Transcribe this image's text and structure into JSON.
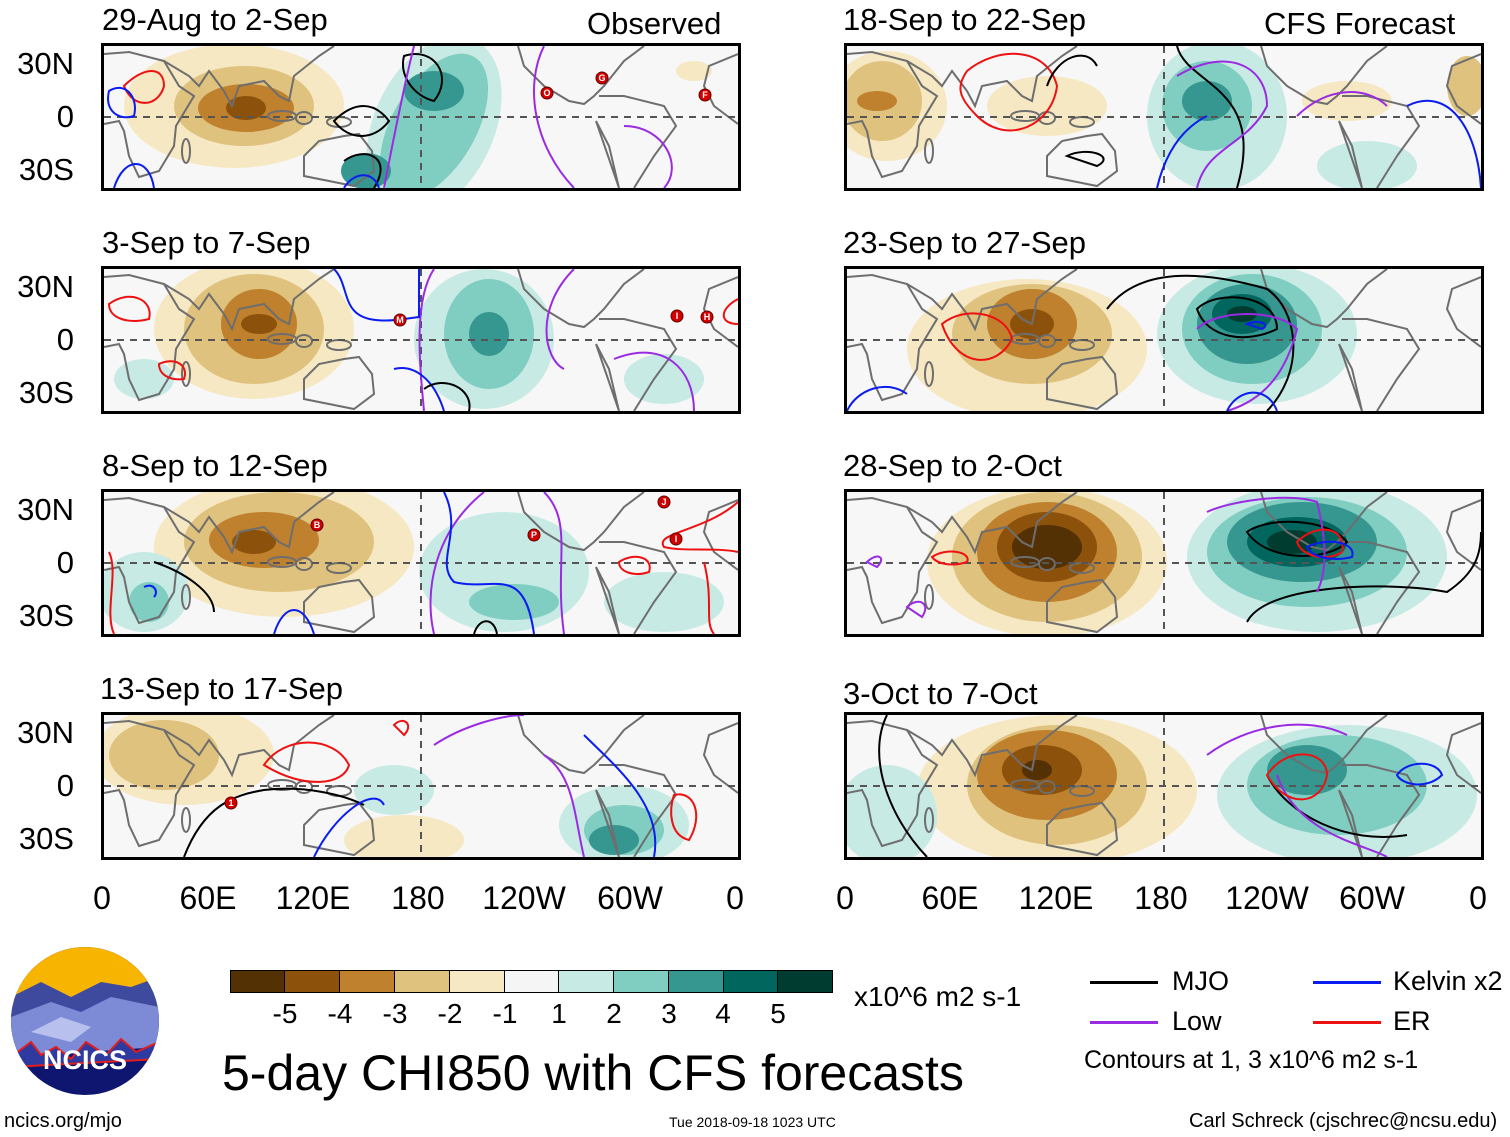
{
  "header": {
    "observed_label": "Observed",
    "forecast_label": "CFS Forecast"
  },
  "axes": {
    "lat_labels": [
      "30N",
      "0",
      "30S"
    ],
    "lon_labels": [
      "0",
      "60E",
      "120E",
      "180",
      "120W",
      "60W",
      "0"
    ]
  },
  "panels": [
    {
      "title": "29-Aug to 2-Sep",
      "storms": [
        "O",
        "G",
        "F"
      ]
    },
    {
      "title": "3-Sep to 7-Sep",
      "storms": [
        "M",
        "I",
        "H"
      ]
    },
    {
      "title": "8-Sep to 12-Sep",
      "storms": [
        "B",
        "P",
        "J",
        "I"
      ]
    },
    {
      "title": "13-Sep to 17-Sep",
      "storms": [
        "1"
      ]
    },
    {
      "title": "18-Sep to 22-Sep",
      "storms": []
    },
    {
      "title": "23-Sep to 27-Sep",
      "storms": []
    },
    {
      "title": "28-Sep to 2-Oct",
      "storms": []
    },
    {
      "title": "3-Oct to 7-Oct",
      "storms": []
    }
  ],
  "colorbar": {
    "colors": [
      "#543005",
      "#8c510a",
      "#bf812d",
      "#dfc27d",
      "#f6e8c3",
      "#f5f5f5",
      "#c7eae5",
      "#80cdc1",
      "#35978f",
      "#01665e",
      "#003c30"
    ],
    "labels": [
      "-5",
      "-4",
      "-3",
      "-2",
      "-1",
      "1",
      "2",
      "3",
      "4",
      "5"
    ],
    "units": "x10^6 m2 s-1"
  },
  "legend": {
    "items": [
      {
        "label": "MJO",
        "color": "#000000"
      },
      {
        "label": "Kelvin x2",
        "color": "#0a1cf0"
      },
      {
        "label": "Low",
        "color": "#9a2be2"
      },
      {
        "label": "ER",
        "color": "#ee1111"
      }
    ],
    "contours_note": "Contours at 1, 3 x10^6 m2 s-1"
  },
  "logo": {
    "text": "NCICS"
  },
  "footer": {
    "title": "5-day CHI850 with CFS forecasts",
    "url": "ncics.org/mjo",
    "timestamp": "Tue 2018-09-18 1023 UTC",
    "author": "Carl Schreck (cjschrec@ncsu.edu)"
  }
}
